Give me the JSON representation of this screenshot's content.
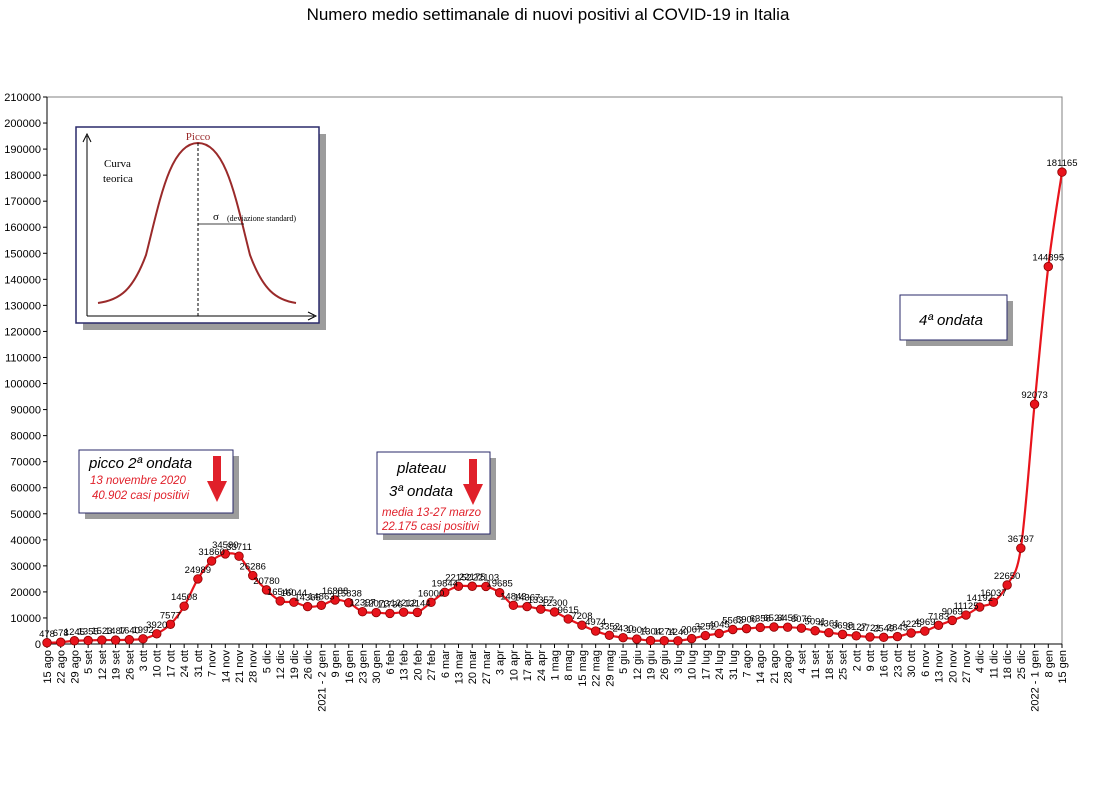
{
  "colors": {
    "line": "#e8141c",
    "marker": "#e8141c",
    "marker_edge": "#8a0000",
    "grid": "#c9c9c9",
    "axis": "#808080",
    "arrow": "#e0202a",
    "inset_curve": "#9a2a2a"
  },
  "chart_data": {
    "type": "line",
    "title": "Numero medio settimanale di nuovi positivi al COVID-19 in Italia",
    "xlabel": "",
    "ylabel": "",
    "ylim": [
      0,
      210000
    ],
    "ytick_step": 10000,
    "grid": true,
    "categories": [
      "15 ago",
      "22 ago",
      "29 ago",
      "5 set",
      "12 set",
      "19 set",
      "26 set",
      "3 ott",
      "10 ott",
      "17 ott",
      "24 ott",
      "31 ott",
      "7 nov",
      "14 nov",
      "21 nov",
      "28 nov",
      "5 dic",
      "12 dic",
      "19 dic",
      "26 dic",
      "2021 - 2 gen",
      "9 gen",
      "16 gen",
      "23 gen",
      "30 gen",
      "6 feb",
      "13 feb",
      "20 feb",
      "27 feb",
      "6 mar",
      "13 mar",
      "20 mar",
      "27 mar",
      "3 apr",
      "10 apr",
      "17 apr",
      "24 apr",
      "1 mag",
      "8 mag",
      "15 mag",
      "22 mag",
      "29 mag",
      "5 giu",
      "12 giu",
      "19 giu",
      "26 giu",
      "3 lug",
      "10 lug",
      "17 lug",
      "24 lug",
      "31 lug",
      "7 ago",
      "14 ago",
      "21 ago",
      "28 ago",
      "4 set",
      "11 set",
      "18 set",
      "25 set",
      "2 ott",
      "9 ott",
      "16 ott",
      "23 ott",
      "30 ott",
      "6 nov",
      "13 nov",
      "20 nov",
      "27 nov",
      "4 dic",
      "11 dic",
      "18 dic",
      "25 dic",
      "2022 - 1 gen",
      "8 gen",
      "15 gen"
    ],
    "values": [
      478,
      678,
      1245,
      1355,
      1523,
      1487,
      1640,
      1992,
      3920,
      7577,
      14508,
      24989,
      31860,
      34580,
      33711,
      26286,
      20780,
      16540,
      16044,
      14365,
      14863,
      16888,
      15838,
      12397,
      12073,
      11736,
      12212,
      12144,
      16000,
      19844,
      22152,
      22175,
      22103,
      19685,
      14843,
      14367,
      13357,
      12300,
      9615,
      7208,
      4974,
      3352,
      2430,
      1904,
      1304,
      1274,
      1240,
      2067,
      3252,
      4045,
      5563,
      5900,
      6358,
      6524,
      6455,
      6076,
      5091,
      4361,
      3698,
      3127,
      2721,
      2549,
      2843,
      4225,
      4969,
      7183,
      9069,
      11125,
      14192,
      16037,
      22650,
      36797,
      92073,
      144895,
      181165
    ],
    "series": [
      {
        "values": "same as values"
      }
    ],
    "annotations": {
      "inset": {
        "picco": "Picco",
        "curva_line1": "Curva",
        "curva_line2": "teorica",
        "sigma": "σ",
        "dev": "(deviazione standard)"
      },
      "wave2": {
        "title": "picco 2ª ondata",
        "line1": "13 novembre 2020",
        "line2": "40.902 casi positivi"
      },
      "wave3": {
        "title_line1": "plateau",
        "title_line2": "3ª ondata",
        "line1": "media 13-27 marzo",
        "line2": "22.175 casi positivi"
      },
      "wave4": {
        "title": "4ª ondata"
      }
    }
  }
}
